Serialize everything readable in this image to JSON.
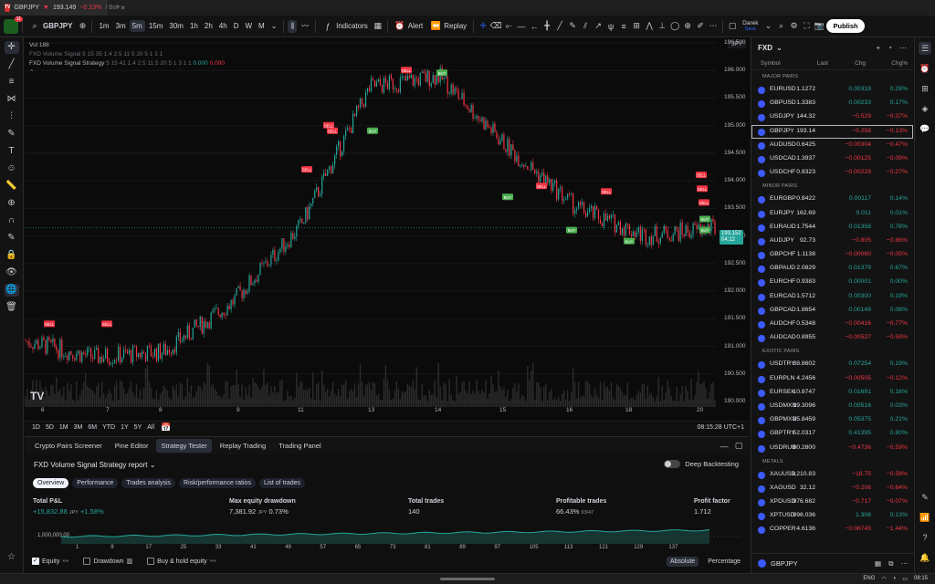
{
  "browser": {
    "tab_title": "GBPJPY",
    "tab_price": "193.149",
    "tab_change": "−0.13%",
    "tab_suffix": "/ Bo",
    "logo_badge": "11"
  },
  "toolbar": {
    "symbol": "GBPJPY",
    "intervals": [
      "1m",
      "3m",
      "5m",
      "15m",
      "30m",
      "1h",
      "2h",
      "4h",
      "D",
      "W",
      "M"
    ],
    "active_interval": "5m",
    "indicators_label": "Indicators",
    "alert_label": "Alert",
    "replay_label": "Replay",
    "user_name": "Darek",
    "user_status": "Save",
    "publish_label": "Publish"
  },
  "chart": {
    "volume_label": "Vol 188",
    "indicator_line1": "FXD Volume Signal 5 15 35 1.4 2.5 11 5 20 5 1 1 1",
    "strategy_name": "FXD Volume Signal Strategy",
    "strategy_params": "5 15 41 1.4 2.5 11 5 20 5 1 3 1 1",
    "strategy_val1": "0.000",
    "strategy_val2": "0.000",
    "currency": "JPY",
    "last_price": "193.152",
    "countdown": "04:12",
    "y_ticks": [
      "196.500",
      "196.000",
      "195.500",
      "195.000",
      "194.500",
      "194.000",
      "193.500",
      "193.000",
      "192.500",
      "192.000",
      "191.500",
      "191.000",
      "190.500",
      "190.000"
    ],
    "x_ticks": [
      "6",
      "7",
      "8",
      "9",
      "11",
      "13",
      "14",
      "15",
      "16",
      "18",
      "20"
    ],
    "signal_sell": "SELL",
    "signal_buy": "BUY",
    "accent_up": "#26a69a",
    "accent_down": "#f23645"
  },
  "chart_data": {
    "type": "line",
    "title": "",
    "xlabel": "",
    "ylabel": "",
    "ylim": [
      189.9,
      196.6
    ],
    "x": [
      "6",
      "7",
      "8",
      "9",
      "11",
      "13",
      "14",
      "15",
      "16",
      "18",
      "20"
    ],
    "series": [
      {
        "values": [
          191.1,
          190.8,
          190.9,
          191.8,
          193.2,
          195.7,
          195.9,
          194.6,
          193.5,
          193.0,
          193.15
        ]
      }
    ]
  },
  "rangebar": {
    "ranges": [
      "1D",
      "5D",
      "1M",
      "3M",
      "6M",
      "YTD",
      "1Y",
      "5Y",
      "All"
    ],
    "clock": "08:15:28 UTC+1"
  },
  "panel": {
    "tabs": [
      "Crypto Pairs Screener",
      "Pine Editor",
      "Strategy Tester",
      "Replay Trading",
      "Trading Panel"
    ],
    "active_tab": "Strategy Tester",
    "report_title": "FXD Volume Signal Strategy report",
    "deep_backtesting": "Deep Backtesting",
    "subtabs": [
      "Overview",
      "Performance",
      "Trades analysis",
      "Risk/performance ratios",
      "List of trades"
    ],
    "metrics": {
      "total_pl_label": "Total P&L",
      "total_pl_value": "+15,832.88",
      "total_pl_unit": "JPY",
      "total_pl_pct": "+1.58%",
      "max_dd_label": "Max equity drawdown",
      "max_dd_value": "7,381.92",
      "max_dd_unit": "JPY",
      "max_dd_pct": "0.73%",
      "total_trades_label": "Total trades",
      "total_trades_value": "140",
      "profitable_label": "Profitable trades",
      "profitable_value": "66.43%",
      "profitable_ratio": "93/47",
      "profit_factor_label": "Profit factor",
      "profit_factor_value": "1.712"
    },
    "equity_axis_label": "1,000,000.00",
    "equity_x_ticks": [
      "1",
      "9",
      "17",
      "25",
      "33",
      "41",
      "49",
      "57",
      "65",
      "73",
      "81",
      "89",
      "97",
      "105",
      "113",
      "121",
      "129",
      "137"
    ],
    "options": {
      "equity": "Equity",
      "drawdown": "Drawdown",
      "buyhold": "Buy & hold equity",
      "absolute": "Absolute",
      "percentage": "Percentage"
    }
  },
  "watchlist": {
    "title": "FXD",
    "columns": {
      "symbol": "Symbol",
      "last": "Last",
      "chg": "Chg",
      "chgp": "Chg%"
    },
    "groups": [
      {
        "name": "MAJOR PAIRS",
        "rows": [
          {
            "sym": "EURUSD",
            "last": "1.1272",
            "chg": "0.00318",
            "chgp": "0.28%",
            "dir": "up"
          },
          {
            "sym": "GBPUSD",
            "last": "1.3383",
            "chg": "0.00233",
            "chgp": "0.17%",
            "dir": "up"
          },
          {
            "sym": "USDJPY",
            "last": "144.32",
            "chg": "−0.529",
            "chgp": "−0.37%",
            "dir": "dn"
          },
          {
            "sym": "GBPJPY",
            "last": "193.14",
            "chg": "−0.258",
            "chgp": "−0.13%",
            "dir": "dn",
            "sel": true
          },
          {
            "sym": "AUDUSD",
            "last": "0.6425",
            "chg": "−0.00304",
            "chgp": "−0.47%",
            "dir": "dn"
          },
          {
            "sym": "USDCAD",
            "last": "1.3937",
            "chg": "−0.00125",
            "chgp": "−0.09%",
            "dir": "dn"
          },
          {
            "sym": "USDCHF",
            "last": "0.8323",
            "chg": "−0.00229",
            "chgp": "−0.27%",
            "dir": "dn"
          }
        ]
      },
      {
        "name": "MINOR PAIRS",
        "rows": [
          {
            "sym": "EURGBP",
            "last": "0.8422",
            "chg": "0.00117",
            "chgp": "0.14%",
            "dir": "up"
          },
          {
            "sym": "EURJPY",
            "last": "162.69",
            "chg": "0.011",
            "chgp": "0.01%",
            "dir": "up"
          },
          {
            "sym": "EURAUD",
            "last": "1.7544",
            "chg": "0.01356",
            "chgp": "0.78%",
            "dir": "up"
          },
          {
            "sym": "AUDJPY",
            "last": "92.73",
            "chg": "−0.805",
            "chgp": "−0.86%",
            "dir": "dn"
          },
          {
            "sym": "GBPCHF",
            "last": "1.1138",
            "chg": "−0.00060",
            "chgp": "−0.05%",
            "dir": "dn"
          },
          {
            "sym": "GBPAUD",
            "last": "2.0829",
            "chg": "0.01379",
            "chgp": "0.67%",
            "dir": "up"
          },
          {
            "sym": "EURCHF",
            "last": "0.9383",
            "chg": "0.00001",
            "chgp": "0.00%",
            "dir": "up"
          },
          {
            "sym": "EURCAD",
            "last": "1.5712",
            "chg": "0.00300",
            "chgp": "0.19%",
            "dir": "up"
          },
          {
            "sym": "GBPCAD",
            "last": "1.8654",
            "chg": "0.00149",
            "chgp": "0.08%",
            "dir": "up"
          },
          {
            "sym": "AUDCHF",
            "last": "0.5348",
            "chg": "−0.00416",
            "chgp": "−0.77%",
            "dir": "dn"
          },
          {
            "sym": "AUDCAD",
            "last": "0.8955",
            "chg": "−0.00527",
            "chgp": "−0.59%",
            "dir": "dn"
          }
        ]
      },
      {
        "name": "EXOTIC PAIRS",
        "rows": [
          {
            "sym": "USDTRY",
            "last": "38.8602",
            "chg": "0.07254",
            "chgp": "0.19%",
            "dir": "up"
          },
          {
            "sym": "EURPLN",
            "last": "4.2456",
            "chg": "−0.00505",
            "chgp": "−0.12%",
            "dir": "dn"
          },
          {
            "sym": "EURSEK",
            "last": "10.8747",
            "chg": "0.01691",
            "chgp": "0.16%",
            "dir": "up"
          },
          {
            "sym": "USDMXN",
            "last": "19.3096",
            "chg": "0.00516",
            "chgp": "0.03%",
            "dir": "up"
          },
          {
            "sym": "GBPMXN",
            "last": "25.8459",
            "chg": "0.05375",
            "chgp": "0.21%",
            "dir": "up",
            "lastclass": "up"
          },
          {
            "sym": "GBPTRY",
            "last": "52.0317",
            "chg": "0.41395",
            "chgp": "0.80%",
            "dir": "up"
          },
          {
            "sym": "USDRUB",
            "last": "80.2800",
            "chg": "−0.4736",
            "chgp": "−0.59%",
            "dir": "dn",
            "lastclass": "up"
          }
        ]
      },
      {
        "name": "METALS",
        "rows": [
          {
            "sym": "XAUUSD",
            "last": "3,210.83",
            "chg": "−18.75",
            "chgp": "−0.58%",
            "dir": "dn"
          },
          {
            "sym": "XAGUSD",
            "last": "32.12",
            "chg": "−0.206",
            "chgp": "−0.64%",
            "dir": "dn"
          },
          {
            "sym": "XPDUSD",
            "last": "976.682",
            "chg": "−0.717",
            "chgp": "−0.07%",
            "dir": "dn"
          },
          {
            "sym": "XPTUSD",
            "last": "996.036",
            "chg": "1.306",
            "chgp": "0.13%",
            "dir": "up"
          },
          {
            "sym": "COPPER",
            "last": "4.6136",
            "chg": "−0.06745",
            "chgp": "−1.44%",
            "dir": "dn"
          }
        ]
      }
    ],
    "footer_symbol": "GBPJPY"
  },
  "taskbar": {
    "lang": "ENG",
    "time": "08:15"
  }
}
